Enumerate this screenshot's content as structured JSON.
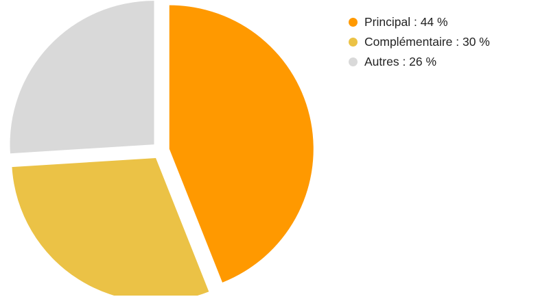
{
  "chart_data": {
    "type": "pie",
    "title": "",
    "exploded": true,
    "start_angle_deg": 0,
    "direction": "clockwise",
    "slices": [
      {
        "label": "Principal",
        "value": 44,
        "color": "#ff9900",
        "legend_text": "Principal : 44 %"
      },
      {
        "label": "Complémentaire",
        "value": 30,
        "color": "#ebc246",
        "legend_text": "Complémentaire : 30 %"
      },
      {
        "label": "Autres",
        "value": 26,
        "color": "#d9d9d9",
        "legend_text": "Autres : 26 %"
      }
    ],
    "legend": {
      "position": "top-right"
    }
  }
}
